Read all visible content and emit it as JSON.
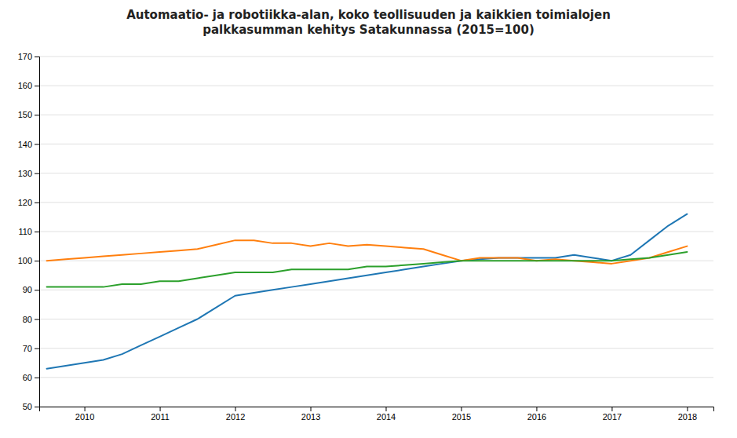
{
  "chart_data": {
    "type": "line",
    "title": "Automaatio- ja robotiikka-alan, koko teollisuuden ja kaikkien toimialojen\npalkkasumman kehitys Satakunnassa (2015=100)",
    "x": [
      2009.5,
      2009.75,
      2010,
      2010.25,
      2010.5,
      2010.75,
      2011,
      2011.25,
      2011.5,
      2011.75,
      2012,
      2012.25,
      2012.5,
      2012.75,
      2013,
      2013.25,
      2013.5,
      2013.75,
      2014,
      2014.25,
      2014.5,
      2014.75,
      2015,
      2015.25,
      2015.5,
      2015.75,
      2016,
      2016.25,
      2016.5,
      2016.75,
      2017,
      2017.25,
      2017.5,
      2017.75,
      2018
    ],
    "series": [
      {
        "values": [
          63,
          64,
          65,
          66,
          68,
          71,
          74,
          77,
          80,
          84,
          88,
          89,
          90,
          91,
          92,
          93,
          94,
          95,
          96,
          97,
          98,
          99,
          100,
          100.5,
          101,
          101,
          101,
          101,
          102,
          101,
          100,
          102,
          107,
          112,
          116
        ]
      },
      {
        "values": [
          100,
          100.5,
          101,
          101.5,
          102,
          102.5,
          103,
          103.5,
          104,
          105.5,
          107,
          107,
          106,
          106,
          105,
          106,
          105,
          105.5,
          105,
          104.5,
          104,
          102,
          100,
          101,
          101,
          101,
          100,
          100.5,
          100,
          99.5,
          99,
          100,
          101,
          103,
          105
        ]
      },
      {
        "values": [
          91,
          91,
          91,
          91,
          92,
          92,
          93,
          93,
          94,
          95,
          96,
          96,
          96,
          97,
          97,
          97,
          97,
          98,
          98,
          98.5,
          99,
          99.5,
          100,
          100,
          100,
          100,
          100,
          100,
          100,
          100,
          100,
          100.5,
          101,
          102,
          103
        ]
      }
    ],
    "xlim": [
      2009.4,
      2018.35
    ],
    "xticks": [
      2010,
      2011,
      2012,
      2013,
      2014,
      2015,
      2016,
      2017,
      2018
    ],
    "ylim": [
      50,
      170
    ],
    "yticks": [
      50,
      60,
      70,
      80,
      90,
      100,
      110,
      120,
      130,
      140,
      150,
      160,
      170
    ],
    "grid": true
  }
}
